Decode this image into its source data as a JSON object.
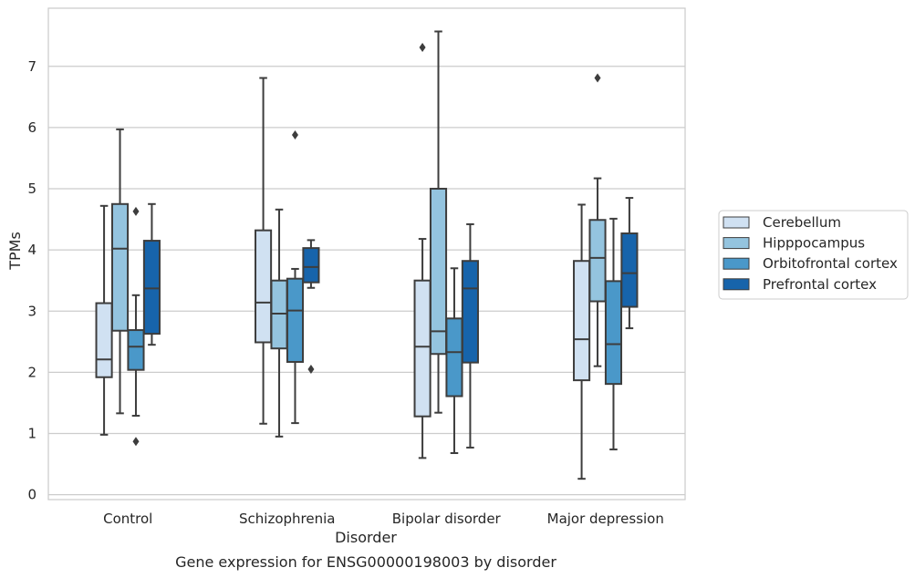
{
  "chart_data": {
    "type": "box",
    "caption": "Gene expression for ENSG00000198003 by disorder",
    "xlabel": "Disorder",
    "ylabel": "TPMs",
    "ylim": [
      -0.08,
      7.95
    ],
    "yticks": [
      0,
      1,
      2,
      3,
      4,
      5,
      6,
      7
    ],
    "grid": "horizontal",
    "legend": "right",
    "categories": [
      "Control",
      "Schizophrenia",
      "Bipolar disorder",
      "Major depression"
    ],
    "series": [
      {
        "name": "Cerebellum",
        "color": "#d0e1f2",
        "boxes": [
          {
            "whislo": 0.98,
            "q1": 1.92,
            "med": 2.21,
            "q3": 3.13,
            "whishi": 4.72,
            "fliers": []
          },
          {
            "whislo": 1.16,
            "q1": 2.49,
            "med": 3.14,
            "q3": 4.32,
            "whishi": 6.81,
            "fliers": []
          },
          {
            "whislo": 0.6,
            "q1": 1.28,
            "med": 2.42,
            "q3": 3.5,
            "whishi": 4.18,
            "fliers": [
              7.31
            ]
          },
          {
            "whislo": 0.26,
            "q1": 1.87,
            "med": 2.54,
            "q3": 3.82,
            "whishi": 4.74,
            "fliers": []
          }
        ]
      },
      {
        "name": "Hipppocampus",
        "color": "#94c4df",
        "boxes": [
          {
            "whislo": 1.33,
            "q1": 2.68,
            "med": 4.02,
            "q3": 4.75,
            "whishi": 5.97,
            "fliers": []
          },
          {
            "whislo": 0.95,
            "q1": 2.39,
            "med": 2.96,
            "q3": 3.5,
            "whishi": 4.66,
            "fliers": []
          },
          {
            "whislo": 1.34,
            "q1": 2.3,
            "med": 2.67,
            "q3": 5.0,
            "whishi": 7.57,
            "fliers": []
          },
          {
            "whislo": 2.1,
            "q1": 3.16,
            "med": 3.87,
            "q3": 4.49,
            "whishi": 5.17,
            "fliers": [
              6.81
            ]
          }
        ]
      },
      {
        "name": "Orbitofrontal cortex",
        "color": "#4a98c9",
        "boxes": [
          {
            "whislo": 1.29,
            "q1": 2.04,
            "med": 2.42,
            "q3": 2.69,
            "whishi": 3.26,
            "fliers": [
              4.63,
              0.87
            ]
          },
          {
            "whislo": 1.17,
            "q1": 2.17,
            "med": 3.01,
            "q3": 3.53,
            "whishi": 3.69,
            "fliers": [
              5.88
            ]
          },
          {
            "whislo": 0.68,
            "q1": 1.61,
            "med": 2.33,
            "q3": 2.88,
            "whishi": 3.7,
            "fliers": []
          },
          {
            "whislo": 0.74,
            "q1": 1.81,
            "med": 2.46,
            "q3": 3.49,
            "whishi": 4.51,
            "fliers": []
          }
        ]
      },
      {
        "name": "Prefrontal cortex",
        "color": "#1764ab",
        "boxes": [
          {
            "whislo": 2.45,
            "q1": 2.63,
            "med": 3.37,
            "q3": 4.15,
            "whishi": 4.75,
            "fliers": []
          },
          {
            "whislo": 3.38,
            "q1": 3.47,
            "med": 3.72,
            "q3": 4.03,
            "whishi": 4.16,
            "fliers": [
              2.05
            ]
          },
          {
            "whislo": 0.77,
            "q1": 2.16,
            "med": 3.37,
            "q3": 3.82,
            "whishi": 4.42,
            "fliers": []
          },
          {
            "whislo": 2.72,
            "q1": 3.07,
            "med": 3.62,
            "q3": 4.27,
            "whishi": 4.85,
            "fliers": []
          }
        ]
      }
    ]
  }
}
